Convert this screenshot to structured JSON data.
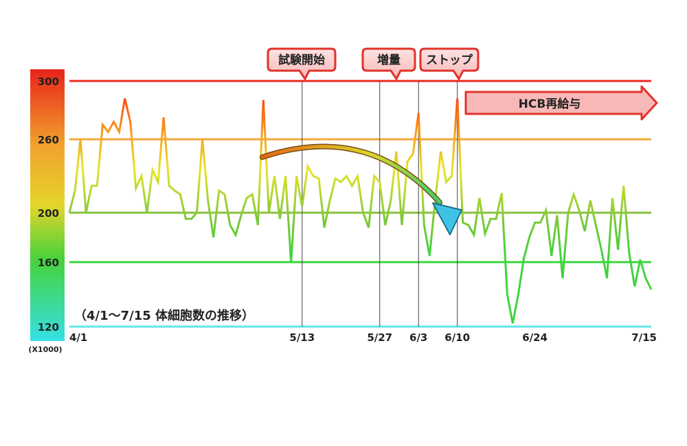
{
  "chart_data": {
    "type": "line",
    "caption": "（4/1〜7/15 体細胞数の推移）",
    "y_unit": "(X1000)",
    "ylim": [
      120,
      300
    ],
    "y_ticks": [
      "300",
      "260",
      "200",
      "160",
      "120"
    ],
    "x_ticks": [
      "4/1",
      "5/13",
      "5/27",
      "6/3",
      "6/10",
      "6/24",
      "7/15"
    ],
    "reference_lines": [
      {
        "value": 300,
        "color": "#ee2a1c"
      },
      {
        "value": 260,
        "color": "#f2a93a"
      },
      {
        "value": 200,
        "color": "#86c23c"
      },
      {
        "value": 160,
        "color": "#3ad43a"
      },
      {
        "value": 120,
        "color": "#5fe6e6"
      }
    ],
    "events": [
      {
        "label": "試験開始",
        "date": "5/13"
      },
      {
        "label": "増量",
        "date": "5/27"
      },
      {
        "label": "ストップ",
        "date": "6/10"
      }
    ],
    "annotation_arrow": "HCB再給与",
    "series": [
      {
        "values": [
          200,
          218,
          260,
          200,
          222,
          222,
          270,
          265,
          272,
          265,
          288,
          272,
          220,
          230,
          200,
          235,
          225,
          275,
          222,
          218,
          215,
          195,
          195,
          200,
          260,
          210,
          180,
          218,
          215,
          190,
          182,
          198,
          212,
          215,
          190,
          287,
          200,
          230,
          195,
          230,
          160,
          230,
          205,
          238,
          230,
          228,
          188,
          210,
          228,
          225,
          230,
          222,
          230,
          200,
          188,
          230,
          225,
          190,
          210,
          250,
          190,
          242,
          248,
          278,
          190,
          165,
          210,
          250,
          225,
          230,
          288,
          192,
          190,
          182,
          212,
          183,
          195,
          195,
          216,
          140,
          122,
          140,
          163,
          180,
          192,
          192,
          202,
          165,
          198,
          150,
          200,
          215,
          202,
          185,
          210,
          190,
          170,
          150,
          212,
          170,
          222,
          168,
          145,
          162,
          150,
          143
        ]
      }
    ]
  }
}
